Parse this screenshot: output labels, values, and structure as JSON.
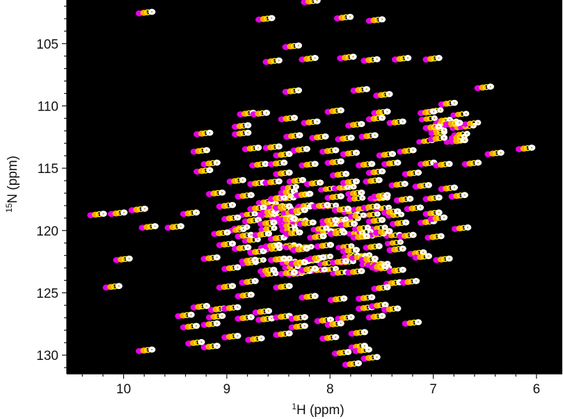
{
  "chart_data": {
    "type": "scatter",
    "subtype": "2D NMR HSQC overlay spectrum",
    "title": "",
    "xlabel_sup": "1",
    "xlabel": "H (ppm)",
    "ylabel_sup": "15",
    "ylabel": "N (ppm)",
    "xlim": [
      10.55,
      5.75
    ],
    "ylim": [
      131.5,
      101.5
    ],
    "x_reversed": true,
    "y_reversed": true,
    "x_ticks": [
      10,
      9,
      8,
      7,
      6
    ],
    "y_ticks": [
      105,
      110,
      115,
      120,
      125,
      130
    ],
    "background_color": "#000000",
    "grid": false,
    "legend": "none",
    "series_colors": [
      "#e600e6",
      "#ffa500",
      "#ffff00",
      "#ffffff"
    ],
    "offset_ppm": {
      "dx": 0.045,
      "dy": -0.06
    },
    "peaks": [
      [
        9.78,
        102.5
      ],
      [
        8.18,
        101.6
      ],
      [
        7.86,
        102.9
      ],
      [
        8.62,
        103.0
      ],
      [
        7.55,
        103.1
      ],
      [
        8.36,
        105.2
      ],
      [
        7.83,
        106.1
      ],
      [
        8.55,
        106.4
      ],
      [
        8.2,
        106.2
      ],
      [
        7.6,
        106.3
      ],
      [
        7.3,
        106.2
      ],
      [
        7.0,
        106.2
      ],
      [
        7.7,
        108.7
      ],
      [
        8.36,
        108.8
      ],
      [
        7.48,
        109.1
      ],
      [
        6.5,
        108.5
      ],
      [
        6.85,
        109.8
      ],
      [
        7.95,
        110.4
      ],
      [
        7.5,
        110.5
      ],
      [
        8.8,
        110.6
      ],
      [
        8.67,
        110.6
      ],
      [
        7.05,
        110.5
      ],
      [
        7.35,
        111.3
      ],
      [
        8.18,
        111.3
      ],
      [
        7.75,
        111.5
      ],
      [
        8.85,
        111.6
      ],
      [
        8.4,
        111.0
      ],
      [
        7.55,
        111.0
      ],
      [
        9.22,
        112.2
      ],
      [
        8.85,
        112.2
      ],
      [
        8.35,
        112.4
      ],
      [
        8.1,
        112.5
      ],
      [
        7.85,
        112.6
      ],
      [
        7.62,
        112.4
      ],
      [
        7.0,
        111.7
      ],
      [
        6.8,
        111.4
      ],
      [
        6.95,
        112.6
      ],
      [
        6.75,
        112.8
      ],
      [
        9.25,
        113.6
      ],
      [
        8.75,
        113.4
      ],
      [
        8.55,
        113.3
      ],
      [
        8.45,
        113.9
      ],
      [
        8.28,
        113.5
      ],
      [
        8.0,
        113.6
      ],
      [
        7.8,
        113.8
      ],
      [
        7.45,
        113.9
      ],
      [
        7.25,
        113.6
      ],
      [
        6.4,
        113.8
      ],
      [
        6.1,
        113.4
      ],
      [
        9.15,
        114.6
      ],
      [
        8.68,
        114.7
      ],
      [
        8.5,
        114.6
      ],
      [
        8.2,
        114.7
      ],
      [
        7.95,
        114.5
      ],
      [
        7.65,
        114.7
      ],
      [
        7.4,
        114.6
      ],
      [
        7.05,
        114.6
      ],
      [
        6.9,
        114.7
      ],
      [
        6.62,
        114.6
      ],
      [
        9.22,
        115.2
      ],
      [
        8.45,
        115.4
      ],
      [
        7.9,
        115.5
      ],
      [
        7.55,
        115.3
      ],
      [
        7.2,
        115.4
      ],
      [
        8.9,
        116.0
      ],
      [
        8.7,
        116.2
      ],
      [
        8.55,
        116.1
      ],
      [
        8.32,
        116.0
      ],
      [
        8.15,
        116.2
      ],
      [
        7.8,
        116.1
      ],
      [
        7.58,
        116.0
      ],
      [
        7.33,
        116.3
      ],
      [
        7.1,
        116.4
      ],
      [
        6.85,
        116.6
      ],
      [
        9.1,
        117.0
      ],
      [
        8.82,
        117.2
      ],
      [
        8.5,
        117.4
      ],
      [
        8.4,
        116.9
      ],
      [
        8.25,
        117.1
      ],
      [
        7.95,
        117.3
      ],
      [
        7.75,
        117.0
      ],
      [
        7.5,
        117.2
      ],
      [
        7.28,
        117.5
      ],
      [
        7.0,
        117.4
      ],
      [
        6.75,
        117.2
      ],
      [
        9.0,
        118.0
      ],
      [
        8.7,
        118.2
      ],
      [
        8.58,
        118.5
      ],
      [
        8.45,
        118.1
      ],
      [
        8.3,
        118.4
      ],
      [
        8.08,
        118.0
      ],
      [
        7.88,
        118.3
      ],
      [
        7.6,
        118.1
      ],
      [
        7.4,
        118.5
      ],
      [
        7.18,
        118.2
      ],
      [
        7.0,
        118.6
      ],
      [
        10.25,
        118.7
      ],
      [
        10.05,
        118.6
      ],
      [
        9.85,
        118.3
      ],
      [
        9.35,
        118.6
      ],
      [
        8.95,
        119.0
      ],
      [
        8.75,
        119.2
      ],
      [
        8.6,
        119.4
      ],
      [
        8.4,
        119.1
      ],
      [
        8.22,
        119.4
      ],
      [
        8.0,
        119.2
      ],
      [
        7.82,
        119.5
      ],
      [
        7.55,
        119.2
      ],
      [
        7.32,
        119.4
      ],
      [
        7.05,
        119.3
      ],
      [
        6.95,
        119.0
      ],
      [
        9.75,
        119.7
      ],
      [
        9.5,
        119.7
      ],
      [
        9.05,
        120.2
      ],
      [
        8.82,
        120.4
      ],
      [
        8.65,
        120.3
      ],
      [
        8.5,
        120.6
      ],
      [
        8.35,
        120.2
      ],
      [
        8.12,
        120.5
      ],
      [
        7.92,
        120.2
      ],
      [
        7.7,
        120.5
      ],
      [
        7.48,
        120.1
      ],
      [
        7.25,
        120.4
      ],
      [
        6.98,
        120.5
      ],
      [
        6.72,
        119.8
      ],
      [
        9.0,
        121.1
      ],
      [
        8.85,
        121.4
      ],
      [
        8.7,
        121.7
      ],
      [
        8.55,
        121.2
      ],
      [
        8.28,
        121.5
      ],
      [
        8.05,
        121.2
      ],
      [
        7.8,
        121.6
      ],
      [
        7.58,
        121.3
      ],
      [
        7.35,
        121.5
      ],
      [
        7.15,
        121.8
      ],
      [
        9.15,
        122.2
      ],
      [
        8.78,
        122.4
      ],
      [
        8.5,
        122.3
      ],
      [
        8.3,
        122.6
      ],
      [
        8.12,
        122.2
      ],
      [
        7.9,
        122.5
      ],
      [
        7.62,
        122.3
      ],
      [
        7.1,
        122.1
      ],
      [
        6.9,
        122.3
      ],
      [
        10.0,
        122.3
      ],
      [
        8.95,
        123.0
      ],
      [
        8.6,
        123.2
      ],
      [
        8.4,
        123.4
      ],
      [
        8.2,
        123.1
      ],
      [
        7.75,
        123.3
      ],
      [
        7.52,
        122.9
      ],
      [
        7.35,
        123.2
      ],
      [
        8.78,
        124.1
      ],
      [
        8.45,
        124.5
      ],
      [
        7.38,
        124.2
      ],
      [
        7.22,
        124.1
      ],
      [
        7.5,
        124.6
      ],
      [
        10.1,
        124.5
      ],
      [
        9.0,
        124.5
      ],
      [
        8.82,
        125.2
      ],
      [
        8.2,
        125.3
      ],
      [
        7.92,
        125.5
      ],
      [
        7.65,
        125.4
      ],
      [
        9.25,
        126.1
      ],
      [
        9.08,
        126.3
      ],
      [
        8.95,
        126.2
      ],
      [
        8.65,
        126.5
      ],
      [
        7.65,
        126.2
      ],
      [
        7.52,
        126.0
      ],
      [
        7.4,
        126.3
      ],
      [
        9.4,
        126.8
      ],
      [
        9.1,
        126.9
      ],
      [
        8.82,
        127.0
      ],
      [
        8.62,
        127.1
      ],
      [
        8.45,
        126.9
      ],
      [
        8.3,
        127.0
      ],
      [
        8.05,
        127.2
      ],
      [
        7.85,
        127.0
      ],
      [
        7.55,
        126.9
      ],
      [
        9.35,
        127.7
      ],
      [
        9.15,
        127.5
      ],
      [
        8.3,
        127.7
      ],
      [
        7.95,
        127.5
      ],
      [
        7.2,
        127.4
      ],
      [
        8.95,
        128.5
      ],
      [
        8.45,
        128.3
      ],
      [
        8.0,
        128.6
      ],
      [
        7.72,
        128.2
      ],
      [
        9.3,
        129.0
      ],
      [
        9.15,
        129.3
      ],
      [
        8.72,
        128.7
      ],
      [
        7.72,
        129.3
      ],
      [
        7.88,
        129.8
      ],
      [
        7.6,
        130.2
      ],
      [
        9.78,
        129.6
      ],
      [
        7.78,
        130.7
      ],
      [
        7.68,
        129.6
      ]
    ],
    "dense_cluster": {
      "x_range": [
        7.35,
        8.9
      ],
      "y_range": [
        116.5,
        123.5
      ],
      "count": 90
    },
    "side_cluster": {
      "x_range": [
        6.6,
        7.1
      ],
      "y_range": [
        110.3,
        113.0
      ],
      "count": 18
    }
  }
}
